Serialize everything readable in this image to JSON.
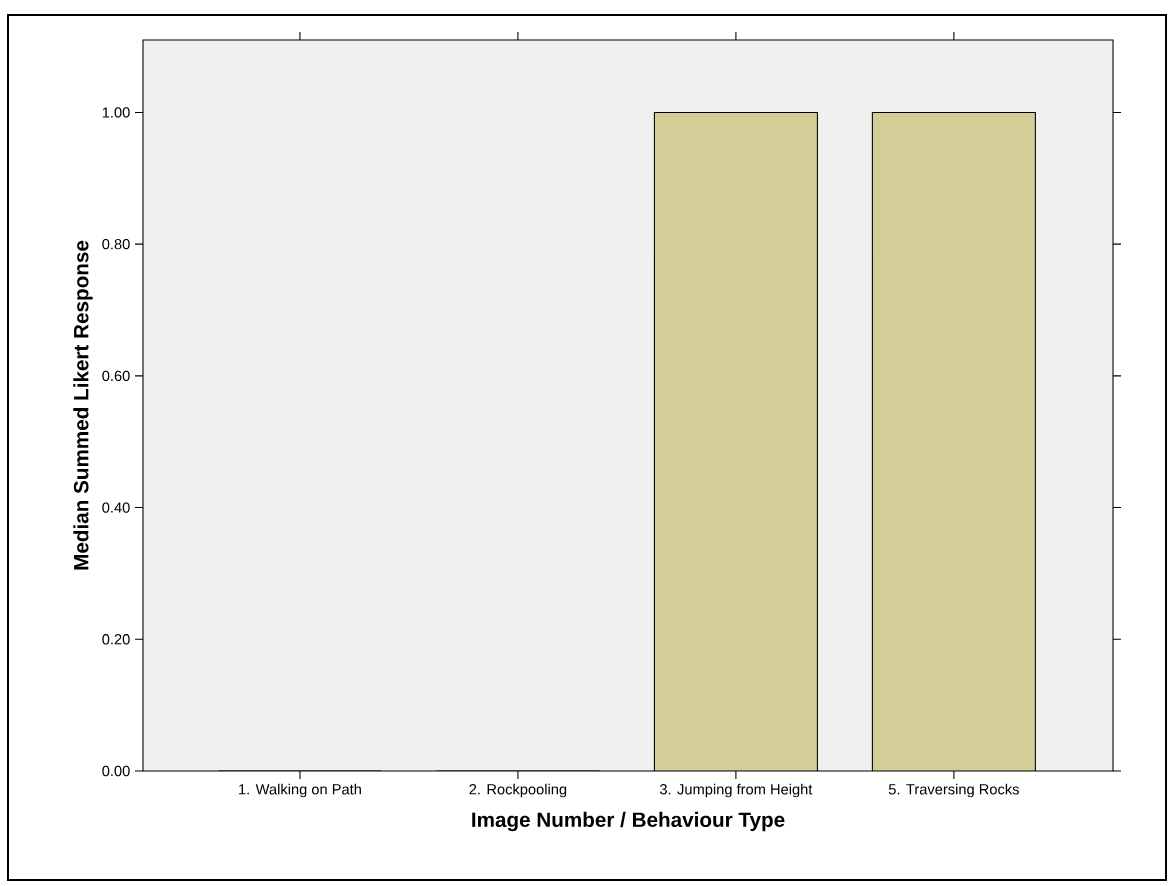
{
  "chart_data": {
    "type": "bar",
    "xlabel": "Image Number / Behaviour Type",
    "ylabel": "Median Summed Likert Response",
    "categories": [
      "1. Walking on Path",
      "2. Rockpooling",
      "3. Jumping from Height",
      "5. Traversing Rocks"
    ],
    "values": [
      0,
      0,
      1,
      1
    ],
    "color": "#d3ce97",
    "ylim": [
      0,
      1.11
    ],
    "yticks": [
      {
        "value": 0,
        "label": "0.00"
      },
      {
        "value": 0.2,
        "label": "0.20"
      },
      {
        "value": 0.4,
        "label": "0.40"
      },
      {
        "value": 0.6,
        "label": "0.60"
      },
      {
        "value": 0.8,
        "label": "0.80"
      },
      {
        "value": 1,
        "label": "1.00"
      }
    ]
  }
}
